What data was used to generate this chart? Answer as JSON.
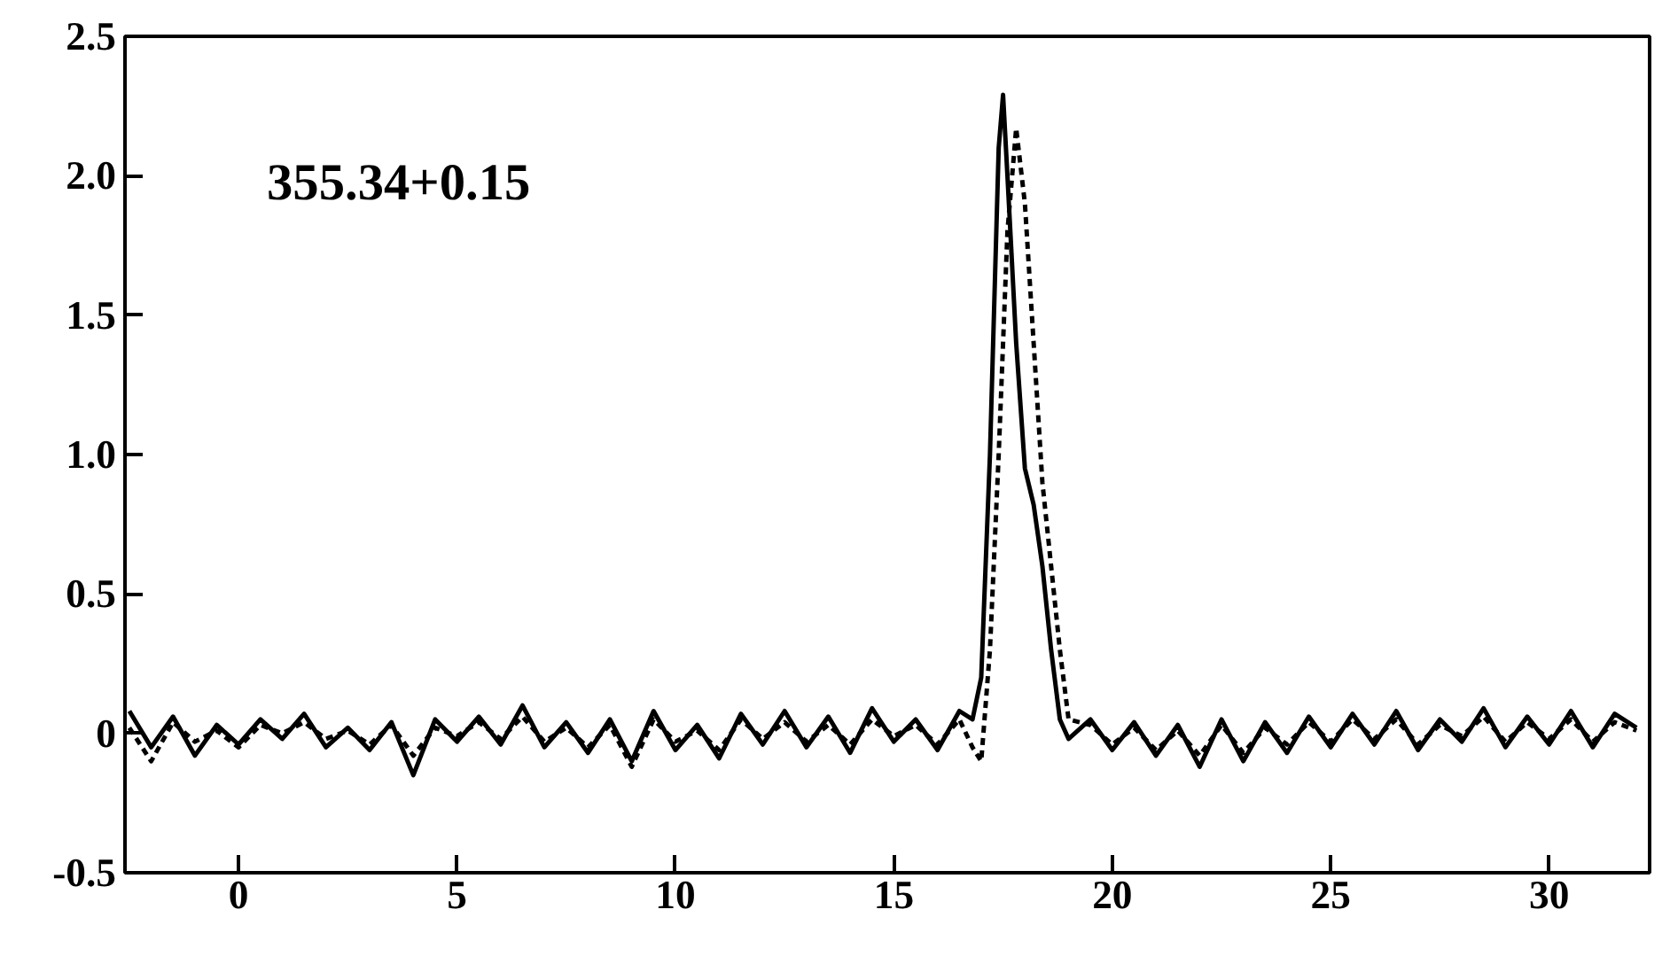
{
  "chart_data": {
    "type": "line",
    "annotations": [
      "355.34+0.15"
    ],
    "xlim": [
      -2.6,
      32.3
    ],
    "ylim": [
      -0.5,
      2.5
    ],
    "xticks": [
      0,
      5,
      10,
      15,
      20,
      25,
      30
    ],
    "yticks": [
      {
        "value": -0.5,
        "label": "-0.5"
      },
      0,
      {
        "value": 0.5,
        "label": "0.5"
      },
      {
        "value": 1.0,
        "label": "1.0"
      },
      {
        "value": 1.5,
        "label": "1.5"
      },
      {
        "value": 2.0,
        "label": "2.0"
      },
      {
        "value": 2.5,
        "label": "2.5"
      }
    ],
    "series": [
      {
        "color": "#000000",
        "line_style": "solid",
        "x": [
          -2.5,
          -2,
          -1.5,
          -1,
          -0.5,
          0,
          0.5,
          1,
          1.5,
          2,
          2.5,
          3,
          3.5,
          4,
          4.5,
          5,
          5.5,
          6,
          6.5,
          7,
          7.5,
          8,
          8.5,
          9,
          9.5,
          10,
          10.5,
          11,
          11.5,
          12,
          12.5,
          13,
          13.5,
          14,
          14.5,
          15,
          15.5,
          16,
          16.5,
          16.8,
          17.0,
          17.2,
          17.4,
          17.5,
          17.6,
          17.8,
          18.0,
          18.2,
          18.4,
          18.6,
          18.8,
          19.0,
          19.5,
          20,
          20.5,
          21,
          21.5,
          22,
          22.5,
          23,
          23.5,
          24,
          24.5,
          25,
          25.5,
          26,
          26.5,
          27,
          27.5,
          28,
          28.5,
          29,
          29.5,
          30,
          30.5,
          31,
          31.5,
          32
        ],
        "values": [
          0.08,
          -0.05,
          0.06,
          -0.08,
          0.03,
          -0.04,
          0.05,
          -0.02,
          0.07,
          -0.05,
          0.02,
          -0.06,
          0.04,
          -0.15,
          0.05,
          -0.03,
          0.06,
          -0.04,
          0.1,
          -0.05,
          0.04,
          -0.07,
          0.05,
          -0.1,
          0.08,
          -0.06,
          0.03,
          -0.09,
          0.07,
          -0.04,
          0.08,
          -0.05,
          0.06,
          -0.07,
          0.09,
          -0.03,
          0.05,
          -0.06,
          0.08,
          0.05,
          0.2,
          1.0,
          2.1,
          2.29,
          2.0,
          1.4,
          0.95,
          0.82,
          0.6,
          0.3,
          0.05,
          -0.02,
          0.05,
          -0.06,
          0.04,
          -0.08,
          0.03,
          -0.12,
          0.05,
          -0.1,
          0.04,
          -0.07,
          0.06,
          -0.05,
          0.07,
          -0.04,
          0.08,
          -0.06,
          0.05,
          -0.03,
          0.09,
          -0.05,
          0.06,
          -0.04,
          0.08,
          -0.05,
          0.07,
          0.02
        ]
      },
      {
        "color": "#000000",
        "line_style": "dashed",
        "x": [
          -2.5,
          -2,
          -1.5,
          -1,
          -0.5,
          0,
          0.5,
          1,
          1.5,
          2,
          2.5,
          3,
          3.5,
          4,
          4.5,
          5,
          5.5,
          6,
          6.5,
          7,
          7.5,
          8,
          8.5,
          9,
          9.5,
          10,
          10.5,
          11,
          11.5,
          12,
          12.5,
          13,
          13.5,
          14,
          14.5,
          15,
          15.5,
          16,
          16.5,
          16.8,
          17.0,
          17.2,
          17.4,
          17.6,
          17.8,
          18.0,
          18.2,
          18.4,
          18.6,
          18.8,
          19.0,
          19.5,
          20,
          20.5,
          21,
          21.5,
          22,
          22.5,
          23,
          23.5,
          24,
          24.5,
          25,
          25.5,
          26,
          26.5,
          27,
          27.5,
          28,
          28.5,
          29,
          29.5,
          30,
          30.5,
          31,
          31.5,
          32
        ],
        "values": [
          0.02,
          -0.1,
          0.04,
          -0.03,
          0.01,
          -0.05,
          0.03,
          0.0,
          0.04,
          -0.02,
          0.01,
          -0.04,
          0.03,
          -0.08,
          0.02,
          -0.01,
          0.04,
          -0.02,
          0.06,
          -0.03,
          0.02,
          -0.05,
          0.03,
          -0.12,
          0.05,
          -0.03,
          0.01,
          -0.06,
          0.05,
          -0.02,
          0.04,
          -0.03,
          0.03,
          -0.04,
          0.05,
          -0.01,
          0.03,
          -0.04,
          0.05,
          -0.05,
          -0.1,
          0.3,
          1.0,
          1.8,
          2.17,
          1.9,
          1.4,
          0.9,
          0.6,
          0.3,
          0.05,
          0.03,
          -0.04,
          0.02,
          -0.06,
          0.01,
          -0.08,
          0.03,
          -0.07,
          0.02,
          -0.04,
          0.04,
          -0.03,
          0.05,
          -0.02,
          0.05,
          -0.04,
          0.03,
          -0.01,
          0.06,
          -0.03,
          0.04,
          -0.02,
          0.05,
          -0.03,
          0.04,
          0.01
        ]
      }
    ]
  }
}
